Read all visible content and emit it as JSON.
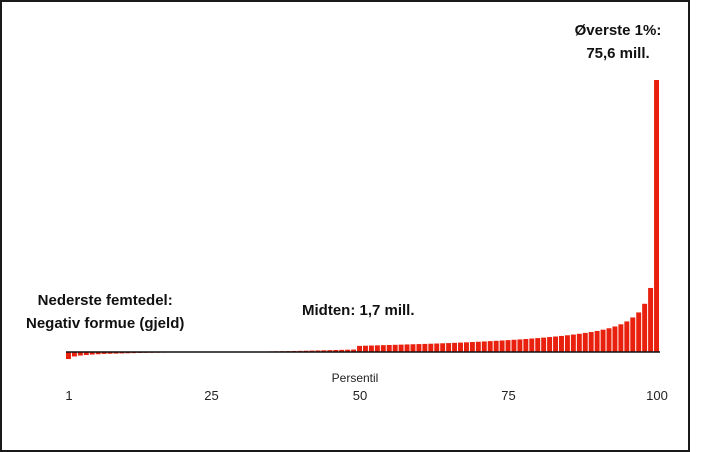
{
  "chart_data": {
    "type": "bar",
    "xlabel": "Persentil",
    "ylabel": "",
    "title": "",
    "xticks": [
      "1",
      "25",
      "50",
      "75",
      "100"
    ],
    "x": [
      1,
      2,
      3,
      4,
      5,
      6,
      7,
      8,
      9,
      10,
      11,
      12,
      13,
      14,
      15,
      16,
      17,
      18,
      19,
      20,
      21,
      22,
      23,
      24,
      25,
      26,
      27,
      28,
      29,
      30,
      31,
      32,
      33,
      34,
      35,
      36,
      37,
      38,
      39,
      40,
      41,
      42,
      43,
      44,
      45,
      46,
      47,
      48,
      49,
      50,
      51,
      52,
      53,
      54,
      55,
      56,
      57,
      58,
      59,
      60,
      61,
      62,
      63,
      64,
      65,
      66,
      67,
      68,
      69,
      70,
      71,
      72,
      73,
      74,
      75,
      76,
      77,
      78,
      79,
      80,
      81,
      82,
      83,
      84,
      85,
      86,
      87,
      88,
      89,
      90,
      91,
      92,
      93,
      94,
      95,
      96,
      97,
      98,
      99,
      100
    ],
    "values": [
      -2.2,
      -1.4,
      -1.1,
      -0.95,
      -0.8,
      -0.7,
      -0.6,
      -0.55,
      -0.5,
      -0.45,
      -0.4,
      -0.35,
      -0.3,
      -0.27,
      -0.24,
      -0.21,
      -0.18,
      -0.15,
      -0.12,
      -0.1,
      -0.08,
      -0.06,
      -0.05,
      -0.04,
      -0.03,
      -0.02,
      -0.01,
      0,
      0,
      0.02,
      0.05,
      0.08,
      0.11,
      0.14,
      0.17,
      0.2,
      0.23,
      0.26,
      0.29,
      0.32,
      0.36,
      0.4,
      0.44,
      0.48,
      0.52,
      0.56,
      0.6,
      0.64,
      0.68,
      1.7,
      1.75,
      1.8,
      1.85,
      1.9,
      1.95,
      2.0,
      2.05,
      2.1,
      2.15,
      2.2,
      2.25,
      2.3,
      2.36,
      2.42,
      2.48,
      2.55,
      2.62,
      2.69,
      2.77,
      2.85,
      2.93,
      3.02,
      3.11,
      3.2,
      3.3,
      3.4,
      3.5,
      3.62,
      3.74,
      3.87,
      4.0,
      4.15,
      4.3,
      4.47,
      4.65,
      4.85,
      5.06,
      5.3,
      5.55,
      5.85,
      6.2,
      6.6,
      7.1,
      7.7,
      8.5,
      9.6,
      11.0,
      13.4,
      17.8,
      75.6
    ],
    "ylim": [
      -2.5,
      76
    ],
    "colors": {
      "bar": "#e8200d",
      "baseline": "#111111"
    },
    "annotations": {
      "bottom_line1": "Nederste femtedel:",
      "bottom_line2": "Negativ formue (gjeld)",
      "middle": "Midten: 1,7 mill.",
      "top_line1": "Øverste 1%:",
      "top_line2": "75,6 mill."
    }
  }
}
